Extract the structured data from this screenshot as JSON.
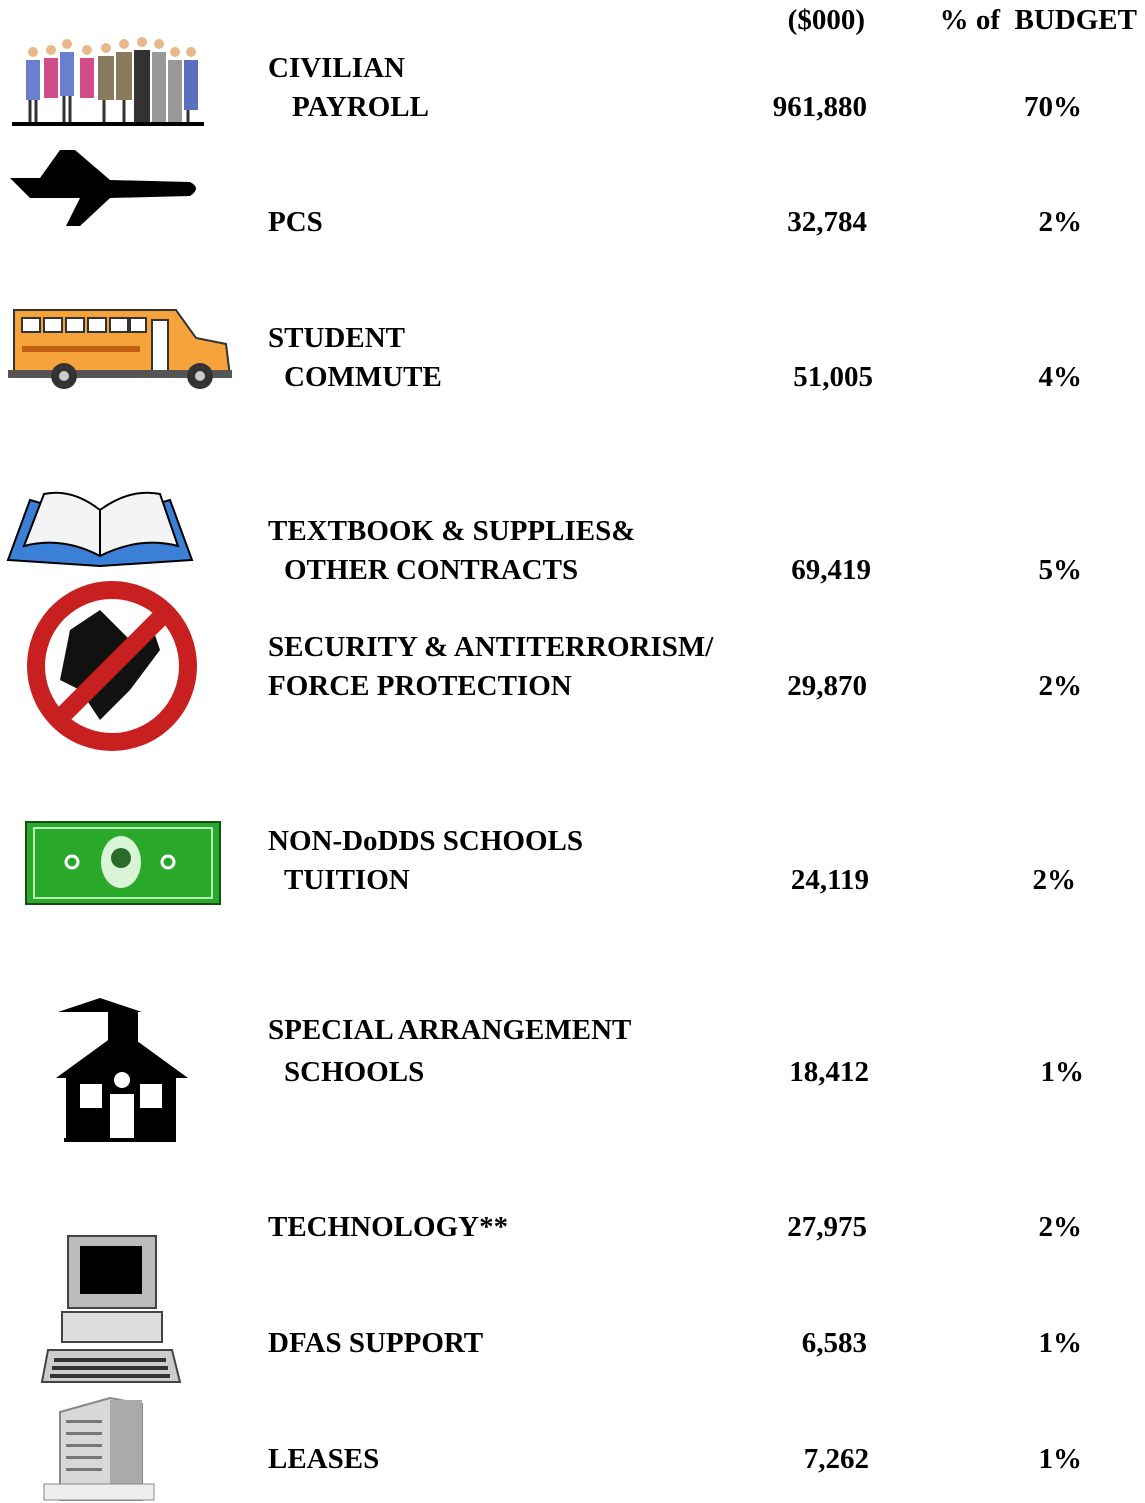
{
  "header": {
    "amount": "($000)",
    "percent": "% of  BUDGET"
  },
  "rows": [
    {
      "label": [
        "CIVILIAN",
        "PAYROLL"
      ],
      "amount": "961,880",
      "percent": "70%"
    },
    {
      "label": [
        "PCS"
      ],
      "amount": "32,784",
      "percent": "2%"
    },
    {
      "label": [
        "STUDENT",
        "COMMUTE"
      ],
      "amount": "51,005",
      "percent": "4%"
    },
    {
      "label": [
        "TEXTBOOK & SUPPLIES&",
        "OTHER CONTRACTS"
      ],
      "amount": "69,419",
      "percent": "5%"
    },
    {
      "label": [
        "SECURITY & ANTITERRORISM/",
        "FORCE PROTECTION"
      ],
      "amount": "29,870",
      "percent": "2%"
    },
    {
      "label": [
        "NON-DoDDS SCHOOLS",
        "TUITION"
      ],
      "amount": "24,119",
      "percent": "2%"
    },
    {
      "label": [
        "SPECIAL ARRANGEMENT",
        "SCHOOLS"
      ],
      "amount": "18,412",
      "percent": "1%"
    },
    {
      "label": [
        "TECHNOLOGY**"
      ],
      "amount": "27,975",
      "percent": "2%"
    },
    {
      "label": [
        "DFAS SUPPORT"
      ],
      "amount": "6,583",
      "percent": "1%"
    },
    {
      "label": [
        "LEASES"
      ],
      "amount": "7,262",
      "percent": "1%"
    }
  ]
}
